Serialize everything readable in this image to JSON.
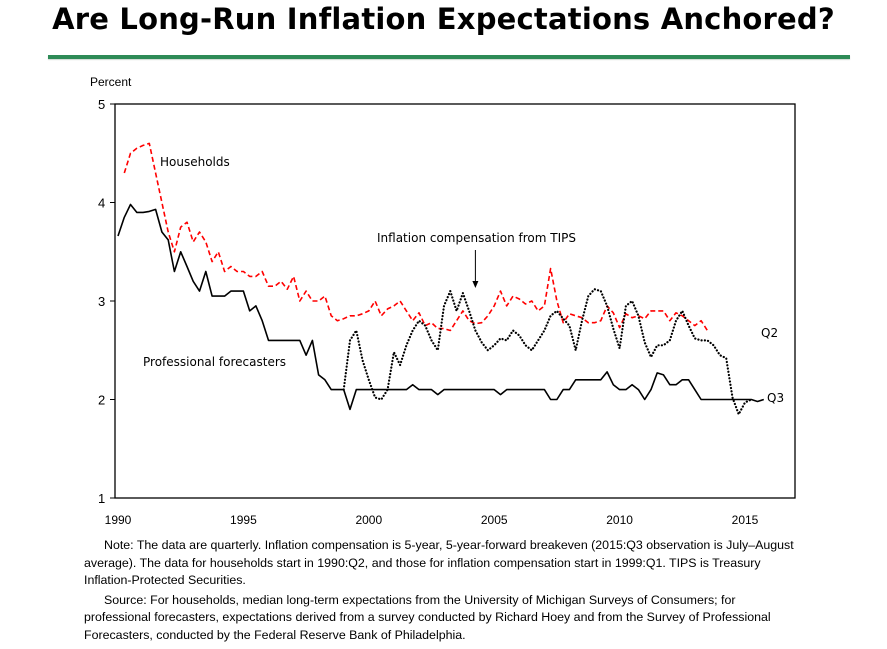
{
  "title": "Are Long-Run Inflation Expectations Anchored?",
  "colors": {
    "rule": "#2E8B57",
    "households": "#FF0000",
    "professional": "#000000",
    "tips": "#000000"
  },
  "chart_data": {
    "type": "line",
    "title": "Are Long-Run Inflation Expectations Anchored?",
    "ylabel": "Percent",
    "xlabel": "",
    "xlim": [
      1990,
      2016.9
    ],
    "ylim": [
      1,
      5
    ],
    "yticks": [
      1,
      2,
      3,
      4,
      5
    ],
    "xticks": [
      1990,
      1995,
      2000,
      2005,
      2010,
      2015
    ],
    "grid": false,
    "legend": "inline labels",
    "annotations": {
      "households": "Households",
      "professional": "Professional forecasters",
      "tips": "Inflation compensation from TIPS",
      "q2": "Q2",
      "q3": "Q3"
    },
    "series": [
      {
        "name": "Households",
        "style": "dashed",
        "frequency": "quarterly",
        "start": 1990.25,
        "values": [
          4.3,
          4.5,
          4.55,
          4.58,
          4.6,
          4.3,
          4.0,
          3.7,
          3.5,
          3.75,
          3.8,
          3.6,
          3.7,
          3.6,
          3.4,
          3.5,
          3.3,
          3.35,
          3.3,
          3.3,
          3.25,
          3.25,
          3.3,
          3.15,
          3.15,
          3.2,
          3.12,
          3.25,
          3.0,
          3.1,
          3.0,
          3.0,
          3.05,
          2.85,
          2.8,
          2.82,
          2.85,
          2.85,
          2.87,
          2.9,
          3.0,
          2.85,
          2.92,
          2.95,
          3.0,
          2.9,
          2.8,
          2.88,
          2.75,
          2.78,
          2.72,
          2.72,
          2.7,
          2.8,
          2.9,
          2.8,
          2.77,
          2.78,
          2.85,
          2.95,
          3.1,
          2.95,
          3.05,
          3.02,
          2.97,
          3.0,
          2.9,
          2.95,
          3.33,
          3.0,
          2.78,
          2.87,
          2.85,
          2.83,
          2.78,
          2.78,
          2.8,
          2.95,
          2.88,
          2.73,
          2.87,
          2.83,
          2.85,
          2.82,
          2.9,
          2.9,
          2.9,
          2.8,
          2.88,
          2.85,
          2.8,
          2.75,
          2.8,
          2.7
        ]
      },
      {
        "name": "Professional forecasters",
        "style": "solid",
        "frequency": "quarterly",
        "start": 1990.0,
        "values": [
          3.66,
          3.85,
          3.98,
          3.9,
          3.9,
          3.91,
          3.93,
          3.7,
          3.62,
          3.3,
          3.5,
          3.35,
          3.2,
          3.1,
          3.3,
          3.05,
          3.05,
          3.05,
          3.1,
          3.1,
          3.1,
          2.9,
          2.95,
          2.8,
          2.6,
          2.6,
          2.6,
          2.6,
          2.6,
          2.6,
          2.45,
          2.6,
          2.25,
          2.2,
          2.1,
          2.1,
          2.1,
          1.9,
          2.1,
          2.1,
          2.1,
          2.1,
          2.1,
          2.1,
          2.1,
          2.1,
          2.1,
          2.15,
          2.1,
          2.1,
          2.1,
          2.05,
          2.1,
          2.1,
          2.1,
          2.1,
          2.1,
          2.1,
          2.1,
          2.1,
          2.1,
          2.05,
          2.1,
          2.1,
          2.1,
          2.1,
          2.1,
          2.1,
          2.1,
          2.0,
          2.0,
          2.1,
          2.1,
          2.2,
          2.2,
          2.2,
          2.2,
          2.2,
          2.28,
          2.15,
          2.1,
          2.1,
          2.15,
          2.1,
          2.0,
          2.1,
          2.27,
          2.25,
          2.15,
          2.15,
          2.2,
          2.2,
          2.1,
          2.0,
          2.0,
          2.0,
          2.0,
          2.0,
          2.0,
          2.0,
          2.0,
          2.0,
          1.98,
          2.0
        ]
      },
      {
        "name": "Inflation compensation from TIPS",
        "style": "dotted",
        "frequency": "quarterly",
        "start": 1999.0,
        "values": [
          2.1,
          2.6,
          2.7,
          2.4,
          2.2,
          2.02,
          2.0,
          2.1,
          2.48,
          2.35,
          2.55,
          2.7,
          2.8,
          2.75,
          2.6,
          2.5,
          2.95,
          3.1,
          2.9,
          3.08,
          2.9,
          2.7,
          2.58,
          2.5,
          2.55,
          2.62,
          2.6,
          2.7,
          2.65,
          2.55,
          2.5,
          2.6,
          2.7,
          2.85,
          2.9,
          2.82,
          2.75,
          2.5,
          2.8,
          3.05,
          3.12,
          3.1,
          2.95,
          2.72,
          2.52,
          2.95,
          3.0,
          2.85,
          2.58,
          2.43,
          2.55,
          2.55,
          2.6,
          2.8,
          2.9,
          2.75,
          2.62,
          2.6,
          2.6,
          2.55,
          2.45,
          2.42,
          2.02,
          1.85,
          1.97,
          2.0
        ]
      }
    ]
  },
  "notes": {
    "note": "Note:  The data are quarterly.  Inflation compensation is 5-year, 5-year-forward breakeven (2015:Q3 observation is July–August average).  The data for households start in 1990:Q2, and those for inflation compensation start in 1999:Q1.  TIPS is Treasury Inflation-Protected Securities.",
    "source": "Source:  For households, median long-term expectations from the University of Michigan Surveys of Consumers; for professional forecasters, expectations derived from a survey conducted by Richard Hoey and from the Survey of Professional Forecasters, conducted by the Federal Reserve Bank of Philadelphia."
  }
}
